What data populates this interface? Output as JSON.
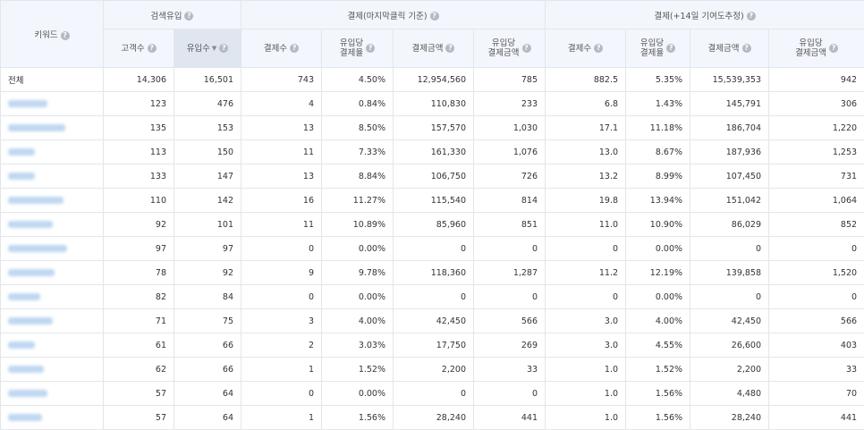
{
  "headers": {
    "keyword": "키워드",
    "group_search": "검색유입",
    "group_last_click": "결제(마지막클릭 기준)",
    "group_contrib": "결제(+14일 기여도추정)",
    "customers": "고객수",
    "inflow": "유입수",
    "payments": "결제수",
    "conv_rate_l1": "유입당",
    "conv_rate_l2": "결제율",
    "amount": "결제금액",
    "per_inflow_amount_l1": "유입당",
    "per_inflow_amount_l2": "결제금액",
    "help_glyph": "?",
    "sort_glyph": "▼"
  },
  "total": {
    "label": "전체",
    "values": [
      "14,306",
      "16,501",
      "743",
      "4.50%",
      "12,954,560",
      "785",
      "882.5",
      "5.35%",
      "15,539,353",
      "942"
    ]
  },
  "rows": [
    {
      "values": [
        "123",
        "476",
        "4",
        "0.84%",
        "110,830",
        "233",
        "6.8",
        "1.43%",
        "145,791",
        "306"
      ]
    },
    {
      "values": [
        "135",
        "153",
        "13",
        "8.50%",
        "157,570",
        "1,030",
        "17.1",
        "11.18%",
        "186,704",
        "1,220"
      ]
    },
    {
      "values": [
        "113",
        "150",
        "11",
        "7.33%",
        "161,330",
        "1,076",
        "13.0",
        "8.67%",
        "187,936",
        "1,253"
      ]
    },
    {
      "values": [
        "133",
        "147",
        "13",
        "8.84%",
        "106,750",
        "726",
        "13.2",
        "8.99%",
        "107,450",
        "731"
      ]
    },
    {
      "values": [
        "110",
        "142",
        "16",
        "11.27%",
        "115,540",
        "814",
        "19.8",
        "13.94%",
        "151,042",
        "1,064"
      ]
    },
    {
      "values": [
        "92",
        "101",
        "11",
        "10.89%",
        "85,960",
        "851",
        "11.0",
        "10.90%",
        "86,029",
        "852"
      ]
    },
    {
      "values": [
        "97",
        "97",
        "0",
        "0.00%",
        "0",
        "0",
        "0",
        "0.00%",
        "0",
        "0"
      ]
    },
    {
      "values": [
        "78",
        "92",
        "9",
        "9.78%",
        "118,360",
        "1,287",
        "11.2",
        "12.19%",
        "139,858",
        "1,520"
      ]
    },
    {
      "values": [
        "82",
        "84",
        "0",
        "0.00%",
        "0",
        "0",
        "0",
        "0.00%",
        "0",
        "0"
      ]
    },
    {
      "values": [
        "71",
        "75",
        "3",
        "4.00%",
        "42,450",
        "566",
        "3.0",
        "4.00%",
        "42,450",
        "566"
      ]
    },
    {
      "values": [
        "61",
        "66",
        "2",
        "3.03%",
        "17,750",
        "269",
        "3.0",
        "4.55%",
        "26,600",
        "403"
      ]
    },
    {
      "values": [
        "62",
        "66",
        "1",
        "1.52%",
        "2,200",
        "33",
        "1.0",
        "1.52%",
        "2,200",
        "33"
      ]
    },
    {
      "values": [
        "57",
        "64",
        "0",
        "0.00%",
        "0",
        "0",
        "1.0",
        "1.56%",
        "4,480",
        "70"
      ]
    },
    {
      "values": [
        "57",
        "64",
        "1",
        "1.56%",
        "28,240",
        "441",
        "1.0",
        "1.56%",
        "28,240",
        "441"
      ]
    }
  ],
  "colors": {
    "header_bg": "#f3f6fc",
    "sorted_header_bg": "#dfe6f0",
    "border": "#e3e6ea",
    "help_icon": "#b4b9c2",
    "redacted_keyword": "#b9d3ef"
  }
}
